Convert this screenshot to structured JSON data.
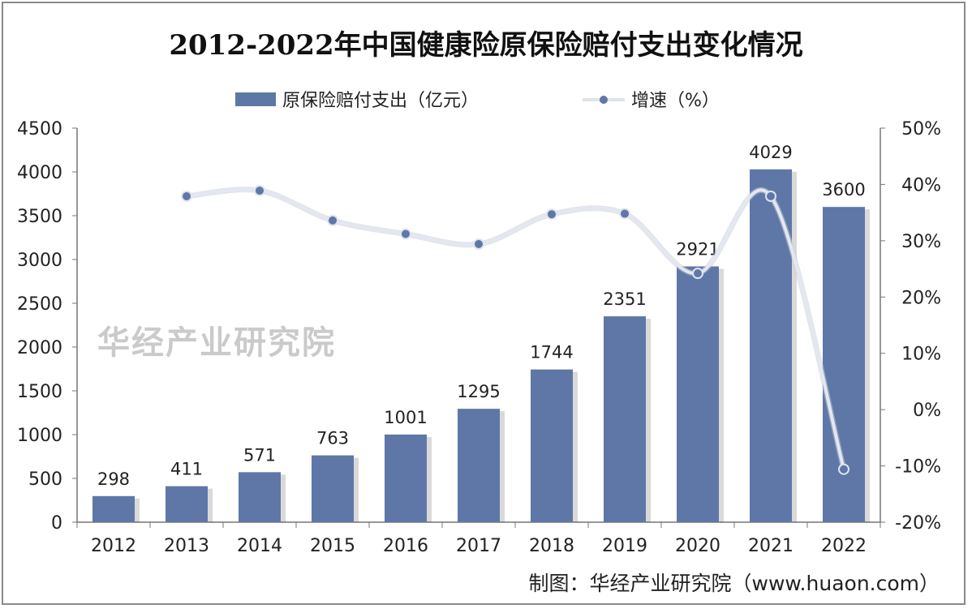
{
  "chart_data": {
    "type": "bar",
    "title": "2012-2022年中国健康险原保险赔付支出变化情况",
    "categories": [
      "2012",
      "2013",
      "2014",
      "2015",
      "2016",
      "2017",
      "2018",
      "2019",
      "2020",
      "2021",
      "2022"
    ],
    "series": [
      {
        "name": "原保险赔付支出（亿元）",
        "type": "bar",
        "axis": "left",
        "color": "#5f77a6",
        "values": [
          298,
          411,
          571,
          763,
          1001,
          1295,
          1744,
          2351,
          2921,
          4029,
          3600
        ]
      },
      {
        "name": "增速（%）",
        "type": "line",
        "axis": "right",
        "color": "#e3e7ef",
        "marker_color": "#5f77a6",
        "values": [
          null,
          37.9,
          38.9,
          33.6,
          31.2,
          29.4,
          34.7,
          34.8,
          24.2,
          37.9,
          -10.6
        ]
      }
    ],
    "left_axis": {
      "ylim": [
        0,
        4500
      ],
      "ticks": [
        "0",
        "500",
        "1000",
        "1500",
        "2000",
        "2500",
        "3000",
        "3500",
        "4000",
        "4500"
      ]
    },
    "right_axis": {
      "ylim": [
        -20,
        50
      ],
      "ticks": [
        "-20%",
        "-10%",
        "0%",
        "10%",
        "20%",
        "30%",
        "40%",
        "50%"
      ]
    },
    "legend_position": "top",
    "grid": false
  },
  "source": "制图：华经产业研究院（www.huaon.com）",
  "watermark": "华经产业研究院 www.huaon.com"
}
